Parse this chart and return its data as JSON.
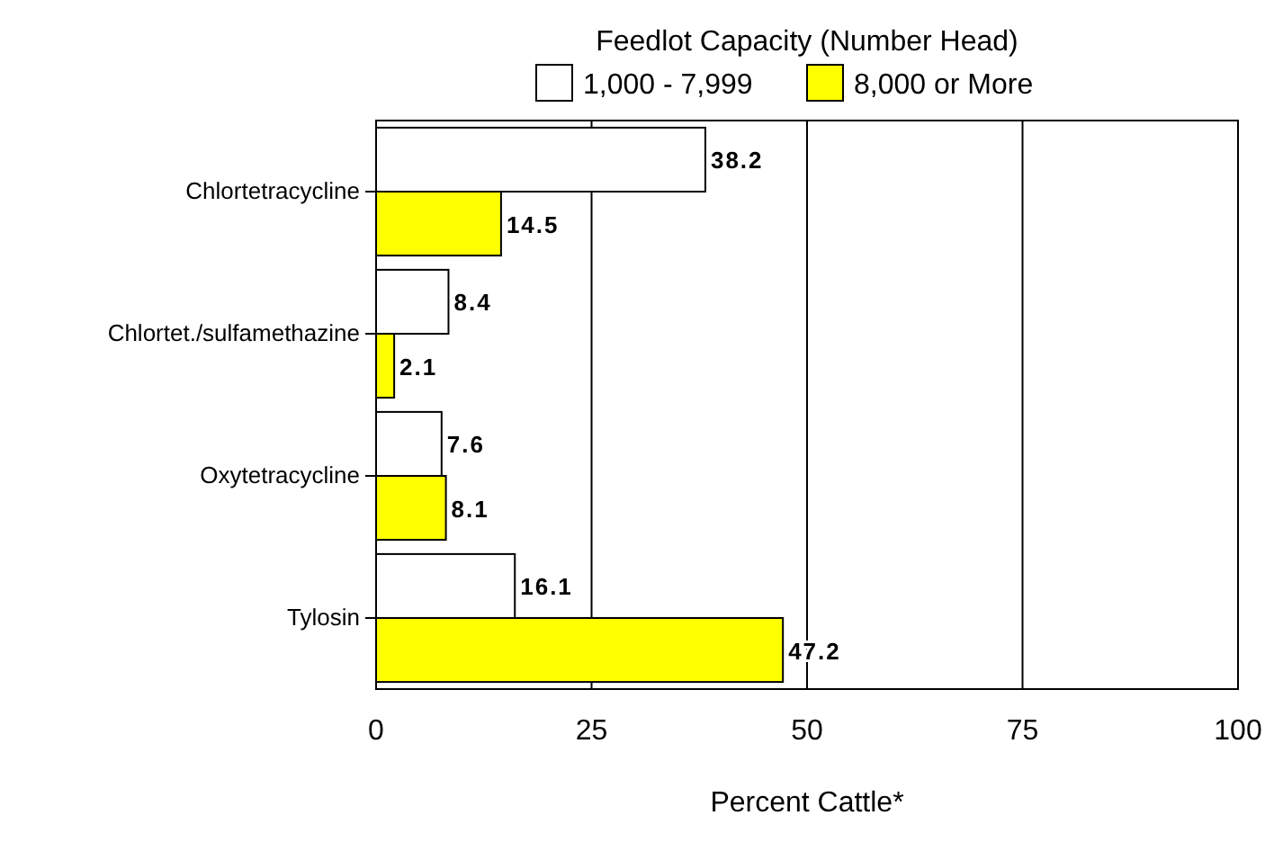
{
  "chart_data": {
    "type": "bar",
    "orientation": "horizontal",
    "legend_title": "Feedlot Capacity (Number Head)",
    "xlabel": "Percent Cattle*",
    "categories": [
      "Chlortetracycline",
      "Chlortet./sulfamethazine",
      "Oxytetracycline",
      "Tylosin"
    ],
    "series": [
      {
        "name": "1,000 - 7,999",
        "color": "#ffffff",
        "values": [
          38.2,
          8.4,
          7.6,
          16.1
        ]
      },
      {
        "name": "8,000 or More",
        "color": "#ffff00",
        "values": [
          14.5,
          2.1,
          8.1,
          47.2
        ]
      }
    ],
    "xlim": [
      0,
      100
    ],
    "xticks": [
      0,
      25,
      50,
      75,
      100
    ],
    "grid": "x",
    "legend": "top",
    "data_labels": true
  }
}
